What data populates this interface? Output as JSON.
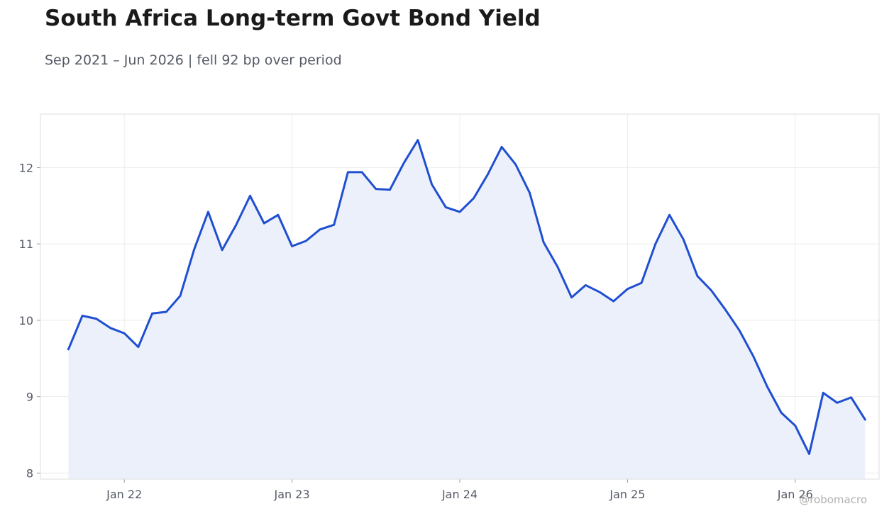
{
  "chart_data": {
    "type": "line",
    "title": "South Africa Long-term Govt Bond Yield",
    "subtitle": "Sep 2021 – Jun 2026 | fell 92 bp over period",
    "xlabel": "",
    "ylabel": "",
    "ylim": [
      7.92,
      12.7
    ],
    "grid": true,
    "legend": "none",
    "x_ticks": [
      {
        "date": "2022-01",
        "label": "Jan 22"
      },
      {
        "date": "2023-01",
        "label": "Jan 23"
      },
      {
        "date": "2024-01",
        "label": "Jan 24"
      },
      {
        "date": "2025-01",
        "label": "Jan 25"
      },
      {
        "date": "2026-01",
        "label": "Jan 26"
      }
    ],
    "y_ticks": [
      8,
      9,
      10,
      11,
      12
    ],
    "x_range": [
      "2021-07",
      "2026-07"
    ],
    "series": [
      {
        "color": "#1f4fd1",
        "fill": "#ecf0fb",
        "x": [
          "2021-09",
          "2021-10",
          "2021-11",
          "2021-12",
          "2022-01",
          "2022-02",
          "2022-03",
          "2022-04",
          "2022-05",
          "2022-06",
          "2022-07",
          "2022-08",
          "2022-09",
          "2022-10",
          "2022-11",
          "2022-12",
          "2023-01",
          "2023-02",
          "2023-03",
          "2023-04",
          "2023-05",
          "2023-06",
          "2023-07",
          "2023-08",
          "2023-09",
          "2023-10",
          "2023-11",
          "2023-12",
          "2024-01",
          "2024-02",
          "2024-03",
          "2024-04",
          "2024-05",
          "2024-06",
          "2024-07",
          "2024-08",
          "2024-09",
          "2024-10",
          "2024-11",
          "2024-12",
          "2025-01",
          "2025-02",
          "2025-03",
          "2025-04",
          "2025-05",
          "2025-06",
          "2025-07",
          "2025-08",
          "2025-09",
          "2025-10",
          "2025-11",
          "2025-12",
          "2026-01",
          "2026-02",
          "2026-03",
          "2026-04",
          "2026-05",
          "2026-06"
        ],
        "values": [
          9.62,
          10.06,
          10.02,
          9.9,
          9.83,
          9.65,
          10.09,
          10.11,
          10.32,
          10.93,
          11.42,
          10.92,
          11.25,
          11.63,
          11.27,
          11.38,
          10.97,
          11.04,
          11.19,
          11.25,
          11.94,
          11.94,
          11.72,
          11.71,
          12.06,
          12.36,
          11.78,
          11.48,
          11.42,
          11.6,
          11.91,
          12.27,
          12.04,
          11.67,
          11.02,
          10.7,
          10.3,
          10.46,
          10.37,
          10.25,
          10.41,
          10.49,
          11.0,
          11.38,
          11.06,
          10.58,
          10.39,
          10.14,
          9.87,
          9.53,
          9.13,
          8.79,
          8.62,
          8.25,
          9.05,
          8.92,
          8.99,
          8.7
        ]
      }
    ]
  },
  "watermark": "@robomacro"
}
